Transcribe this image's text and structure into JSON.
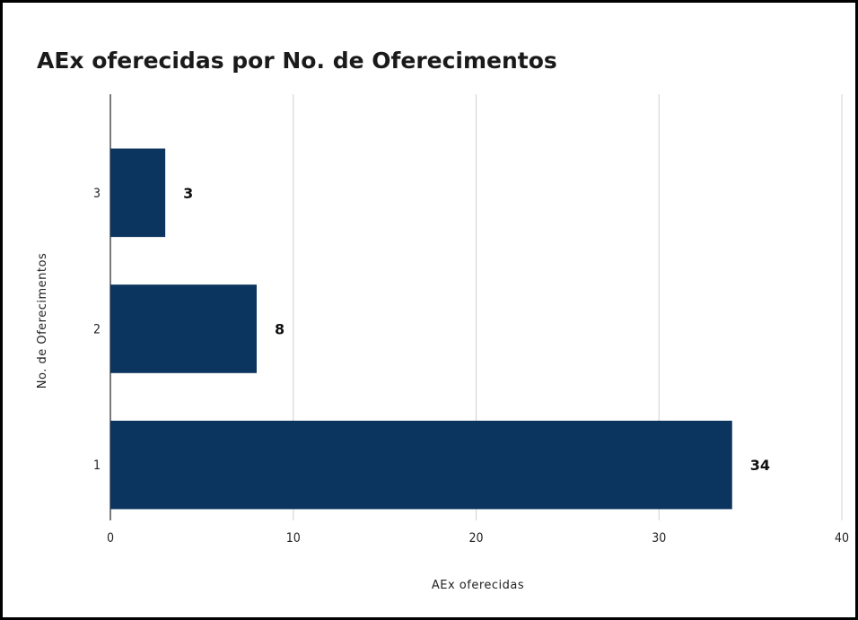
{
  "chart_data": {
    "type": "bar",
    "orientation": "horizontal",
    "title": "AEx oferecidas por No. de Oferecimentos",
    "xlabel": "AEx oferecidas",
    "ylabel": "No. de Oferecimentos",
    "categories": [
      "3",
      "2",
      "1"
    ],
    "values": [
      3,
      8,
      34
    ],
    "data_labels": [
      "3",
      "8",
      "34"
    ],
    "xlim": [
      0,
      40
    ],
    "xticks": [
      "0",
      "10",
      "20",
      "30",
      "40"
    ],
    "grid": "vertical",
    "legend": "none",
    "bar_color": "#0b355f"
  }
}
